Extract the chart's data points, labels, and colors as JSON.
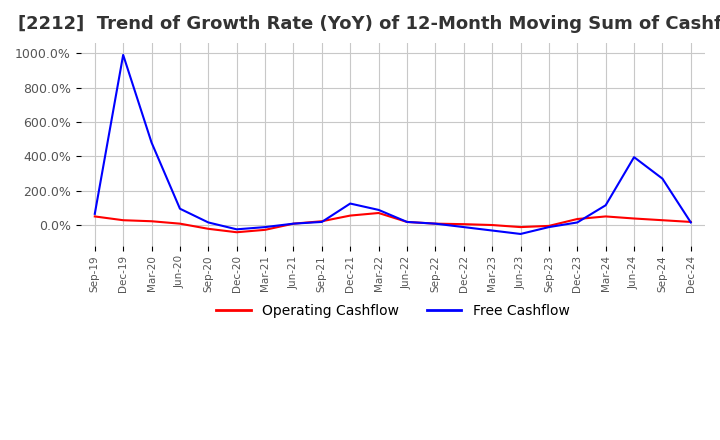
{
  "title": "[2212]  Trend of Growth Rate (YoY) of 12-Month Moving Sum of Cashflows",
  "title_fontsize": 13,
  "ylim": [
    -120,
    1060
  ],
  "yticks": [
    0,
    200,
    400,
    600,
    800,
    1000
  ],
  "yticklabels": [
    "0.0%",
    "200.0%",
    "400.0%",
    "600.0%",
    "800.0%",
    "1000.0%"
  ],
  "background_color": "#ffffff",
  "grid_color": "#c8c8c8",
  "legend_labels": [
    "Operating Cashflow",
    "Free Cashflow"
  ],
  "legend_colors": [
    "#ff0000",
    "#0000ff"
  ],
  "x_labels": [
    "Sep-19",
    "Dec-19",
    "Mar-20",
    "Jun-20",
    "Sep-20",
    "Dec-20",
    "Mar-21",
    "Jun-21",
    "Sep-21",
    "Dec-21",
    "Mar-22",
    "Jun-22",
    "Sep-22",
    "Dec-22",
    "Mar-23",
    "Jun-23",
    "Sep-23",
    "Dec-23",
    "Mar-24",
    "Jun-24",
    "Sep-24",
    "Dec-24"
  ],
  "operating_cashflow": [
    50,
    28,
    22,
    8,
    -22,
    -42,
    -28,
    8,
    22,
    55,
    70,
    18,
    8,
    5,
    0,
    -12,
    -5,
    35,
    50,
    38,
    28,
    18
  ],
  "free_cashflow": [
    65,
    990,
    480,
    95,
    15,
    -25,
    -12,
    8,
    18,
    125,
    88,
    18,
    8,
    -12,
    -32,
    -52,
    -12,
    15,
    115,
    395,
    270,
    15
  ]
}
